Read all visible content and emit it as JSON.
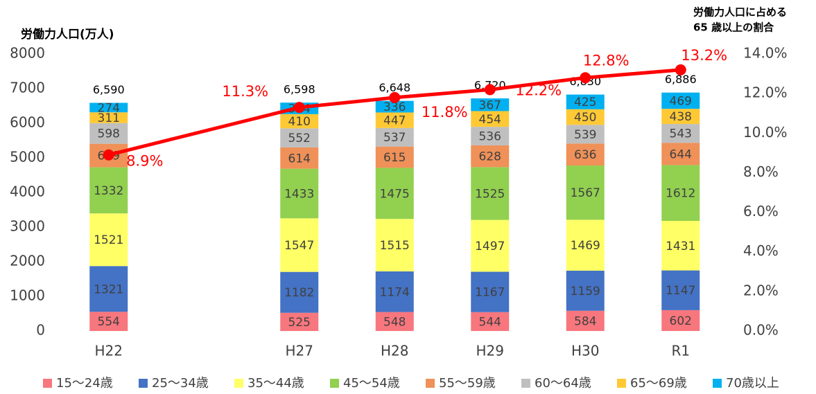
{
  "chart_data": {
    "type": "stacked-bar-line",
    "y_axis_title": "労働力人口(万人)",
    "y2_axis_title": [
      "労働力人口に占める",
      "65 歳以上の割合"
    ],
    "categories": [
      "H22",
      "H27",
      "H28",
      "H29",
      "H30",
      "R1"
    ],
    "series": [
      {
        "name": "15～24歳",
        "color": "#f8767d",
        "values": [
          554,
          525,
          548,
          544,
          584,
          602
        ]
      },
      {
        "name": "25～34歳",
        "color": "#4472c4",
        "values": [
          1321,
          1182,
          1174,
          1167,
          1159,
          1147
        ]
      },
      {
        "name": "35～44歳",
        "color": "#ffff66",
        "values": [
          1521,
          1547,
          1515,
          1497,
          1469,
          1431
        ]
      },
      {
        "name": "45～54歳",
        "color": "#92d050",
        "values": [
          1332,
          1433,
          1475,
          1525,
          1567,
          1612
        ]
      },
      {
        "name": "55～59歳",
        "color": "#ef9158",
        "values": [
          679,
          614,
          615,
          628,
          636,
          644
        ]
      },
      {
        "name": "60～64歳",
        "color": "#bfbfbf",
        "values": [
          598,
          552,
          537,
          536,
          539,
          543
        ]
      },
      {
        "name": "65～69歳",
        "color": "#ffc935",
        "values": [
          311,
          410,
          447,
          454,
          450,
          438
        ]
      },
      {
        "name": "70歳以上",
        "color": "#00b0f0",
        "values": [
          274,
          334,
          336,
          367,
          425,
          469
        ]
      }
    ],
    "totals": [
      6590,
      6598,
      6648,
      6720,
      6830,
      6886
    ],
    "total_labels": [
      "6,590",
      "6,598",
      "6,648",
      "6,720",
      "6,830",
      "6,886"
    ],
    "line": {
      "axis": "y2",
      "color": "#ff0000",
      "values": [
        8.9,
        11.3,
        11.8,
        12.2,
        12.8,
        13.2
      ],
      "value_labels": [
        "8.9%",
        "11.3%",
        "11.8%",
        "12.2%",
        "12.8%",
        "13.2%"
      ]
    },
    "ylim": [
      0,
      8000
    ],
    "yticks": [
      0,
      1000,
      2000,
      3000,
      4000,
      5000,
      6000,
      7000,
      8000
    ],
    "y2lim": [
      0,
      14
    ],
    "y2ticks": [
      {
        "value": 0,
        "label": "0.0%"
      },
      {
        "value": 2,
        "label": "2.0%"
      },
      {
        "value": 4,
        "label": "4.0%"
      },
      {
        "value": 6,
        "label": "6.0%"
      },
      {
        "value": 8,
        "label": "8.0%"
      },
      {
        "value": 10,
        "label": "10.0%"
      },
      {
        "value": 12,
        "label": "12.0%"
      },
      {
        "value": 14,
        "label": "14.0%"
      }
    ]
  }
}
